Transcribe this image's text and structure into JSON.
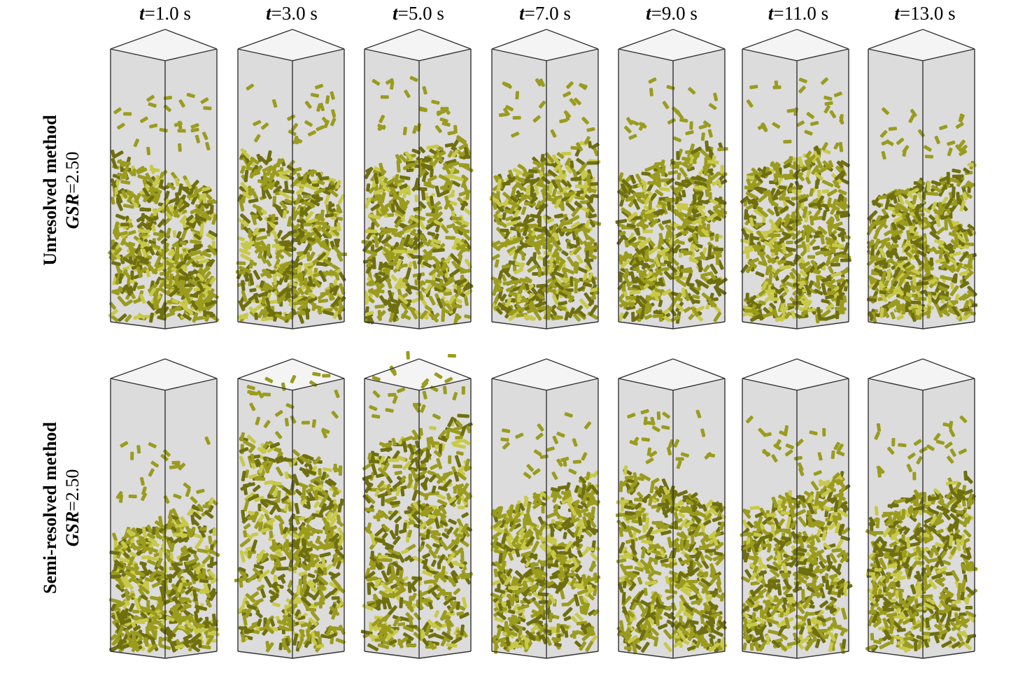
{
  "time_labels": [
    {
      "var": "t",
      "value": "=1.0 s"
    },
    {
      "var": "t",
      "value": "=3.0 s"
    },
    {
      "var": "t",
      "value": "=5.0 s"
    },
    {
      "var": "t",
      "value": "=7.0 s"
    },
    {
      "var": "t",
      "value": "=9.0 s"
    },
    {
      "var": "t",
      "value": "=11.0 s"
    },
    {
      "var": "t",
      "value": "=13.0 s"
    }
  ],
  "rows": [
    {
      "method": "Unresolved method",
      "param_var": "GSR",
      "param_value": "=2.50"
    },
    {
      "method": "Semi-resolved method",
      "param_var": "GSR",
      "param_value": "=2.50"
    }
  ],
  "colors": {
    "column_fill": "#dcdcdc",
    "edge": "#333333",
    "particle": "#9b9b1e",
    "particle_dark": "#6f6f10",
    "particle_light": "#c8c84a"
  }
}
